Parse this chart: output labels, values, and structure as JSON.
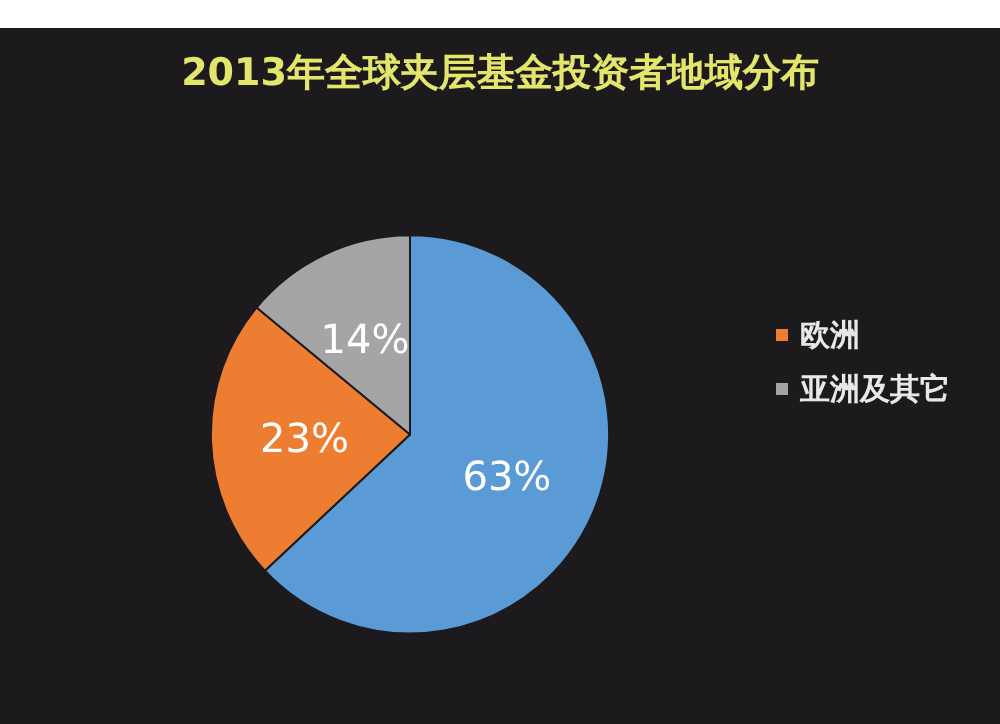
{
  "chart_data": {
    "type": "pie",
    "title": "2013年全球夹层基金投资者地域分布",
    "categories": [
      null,
      "欧洲",
      "亚洲及其它"
    ],
    "values": [
      63,
      23,
      14
    ],
    "colors": [
      "#5b9bd5",
      "#ed7d31",
      "#a5a5a5"
    ],
    "value_labels": [
      "63%",
      "23%",
      "14%"
    ],
    "legend": "right"
  }
}
